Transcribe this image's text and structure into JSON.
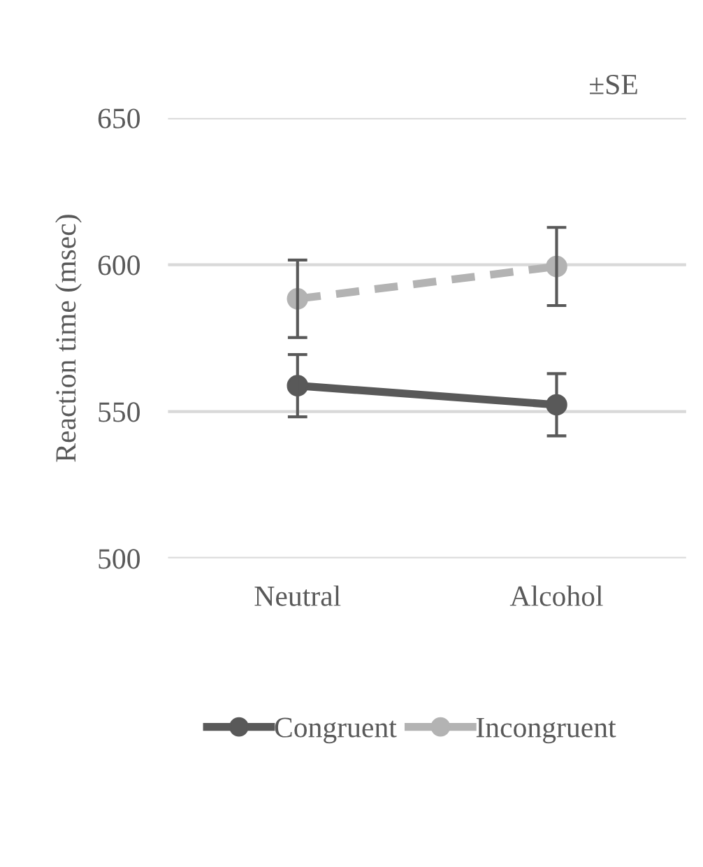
{
  "chart_data": {
    "type": "line",
    "ylabel": "Reaction time (msec)",
    "categories": [
      "Neutral",
      "Alcohol"
    ],
    "series": [
      {
        "name": "Congruent",
        "color": "#595959",
        "values": [
          558.8,
          552.3
        ],
        "errors": [
          10.6,
          10.6
        ],
        "line_style": "solid"
      },
      {
        "name": "Incongruent",
        "color": "#b3b3b3",
        "values": [
          588.4,
          599.4
        ],
        "errors": [
          13.2,
          13.3
        ],
        "line_style": "dashed"
      }
    ],
    "ylim": [
      500,
      650
    ],
    "yticks": [
      500,
      550,
      600,
      650
    ],
    "grid": "y",
    "legend": "bottom",
    "marker": "circle",
    "annotations": [
      "±SE"
    ]
  }
}
